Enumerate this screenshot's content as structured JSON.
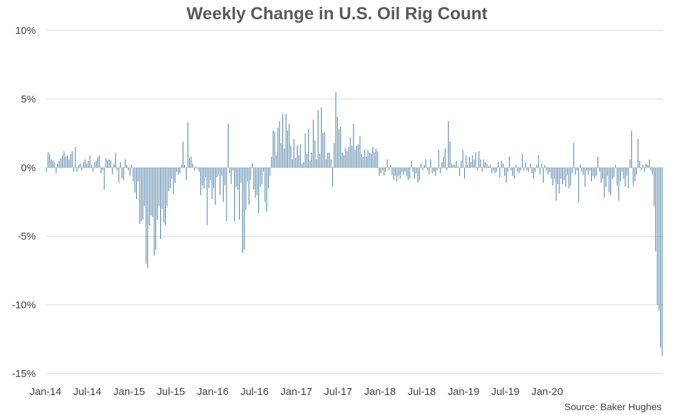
{
  "colors": {
    "bar": "#4A7EA6",
    "grid": "#D9D9D9",
    "text": "#404040",
    "title": "#595959"
  },
  "chart_data": {
    "type": "bar",
    "title": "Weekly Change in U.S. Oil Rig Count",
    "source": "Source: Baker Hughes",
    "xlabel": "",
    "ylabel": "",
    "ylim": [
      -15,
      10
    ],
    "y_ticks": [
      10,
      5,
      0,
      -5,
      -10,
      -15
    ],
    "y_tick_labels": [
      "10%",
      "5%",
      "0%",
      "-5%",
      "-10%",
      "-15%"
    ],
    "x_tick_labels": [
      "Jan-14",
      "Jul-14",
      "Jan-15",
      "Jul-15",
      "Jan-16",
      "Jul-16",
      "Jan-17",
      "Jul-17",
      "Jan-18",
      "Jul-18",
      "Jan-19",
      "Jul-19",
      "Jan-20"
    ],
    "grid": true,
    "legend": "none",
    "series": [
      {
        "values": [
          -0.3,
          1.1,
          1.0,
          0.6,
          0.5,
          0.4,
          -0.4,
          0.3,
          0.5,
          0.7,
          0.9,
          1.2,
          0.8,
          0.9,
          0.6,
          1.0,
          1.2,
          -0.3,
          1.5,
          -0.3,
          0.2,
          0.3,
          -0.2,
          0.4,
          0.6,
          0.3,
          0.5,
          0.9,
          0.2,
          -0.3,
          0.4,
          0.5,
          0.8,
          0.9,
          -0.4,
          -0.2,
          -1.6,
          0.7,
          0.5,
          0.6,
          0.5,
          -0.5,
          0.3,
          1.1,
          -0.2,
          -1.1,
          0.4,
          -0.8,
          -0.9,
          0.6,
          0.2,
          -0.2,
          -0.6,
          0.2,
          -1.0,
          -1.8,
          -2.3,
          -1.0,
          -4.1,
          -3.9,
          -3.8,
          -2.8,
          -7.0,
          -7.3,
          -4.2,
          -3.5,
          -3.6,
          -6.4,
          -6.0,
          -3.8,
          -2.8,
          -5.2,
          -3.0,
          -4.0,
          -4.2,
          -2.8,
          -1.7,
          -1.5,
          -0.8,
          -1.9,
          -1.1,
          -0.3,
          -0.5,
          -0.4,
          0.2,
          1.9,
          0.2,
          -0.9,
          3.3,
          0.7,
          0.8,
          0.3,
          -0.2,
          0.1,
          -0.1,
          -0.3,
          -2.0,
          -1.3,
          -1.5,
          -0.7,
          -4.2,
          -1.5,
          -0.9,
          -2.3,
          -1.5,
          -2.7,
          -0.7,
          -0.5,
          -2.0,
          -0.6,
          -2.5,
          -1.3,
          -3.9,
          3.2,
          -0.4,
          -1.2,
          -0.2,
          -3.9,
          -1.4,
          -1.6,
          -3.8,
          -1.1,
          -6.2,
          -6.0,
          -3.1,
          -1.0,
          -2.7,
          -0.9,
          0.3,
          -1.6,
          -2.2,
          -2.0,
          -3.3,
          -1.4,
          -1.2,
          -0.3,
          -2.5,
          -3.2,
          -1.5,
          -0.6,
          0.8,
          2.7,
          2.6,
          0.9,
          2.9,
          3.4,
          1.8,
          3.9,
          1.4,
          3.9,
          2.7,
          3.2,
          1.6,
          0.6,
          2.1,
          0.7,
          1.6,
          0.9,
          1.7,
          0.3,
          0.4,
          2.5,
          1.0,
          2.8,
          0.5,
          1.1,
          3.5,
          2.0,
          0.6,
          4.2,
          1.0,
          4.4,
          2.5,
          2.6,
          0.6,
          1.1,
          1.1,
          0.6,
          -1.4,
          1.8,
          5.5,
          3.7,
          2.8,
          3.0,
          1.1,
          0.9,
          1.4,
          1.2,
          1.5,
          2.2,
          1.6,
          3.2,
          1.3,
          1.6,
          1.7,
          2.3,
          1.0,
          0.8,
          1.3,
          0.8,
          1.3,
          1.1,
          1.0,
          1.5,
          1.1,
          1.4,
          1.2,
          -0.6,
          -0.4,
          -0.2,
          -0.6,
          -0.3,
          0.6,
          -0.2,
          0.2,
          -0.5,
          -0.9,
          -0.6,
          -1.0,
          -0.6,
          -0.8,
          -0.3,
          -0.5,
          -0.3,
          -0.6,
          -0.9,
          -0.8,
          0.5,
          -0.3,
          -0.8,
          -0.4,
          -1.1,
          -0.9,
          0.3,
          -0.2,
          0.2,
          0.6,
          -0.2,
          -0.5,
          0.6,
          -0.4,
          -0.3,
          -0.6,
          -0.2,
          1.3,
          -0.4,
          0.4,
          0.8,
          1.4,
          -0.2,
          3.4,
          1.9,
          0.3,
          0.2,
          0.2,
          0.5,
          0.1,
          -0.6,
          0.5,
          1.3,
          -0.8,
          0.9,
          0.2,
          0.8,
          0.4,
          0.9,
          0.6,
          1.1,
          -0.2,
          1.2,
          0.6,
          -0.3,
          0.6,
          0.4,
          0.3,
          0.1,
          0.2,
          -0.4,
          -0.2,
          -0.4,
          -0.3,
          0.4,
          -0.7,
          0.5,
          0.3,
          -0.6,
          -1.1,
          -0.3,
          0.8,
          -0.2,
          -0.6,
          -0.8,
          0.2,
          -0.3,
          -0.4,
          -0.2,
          1.0,
          -0.2,
          0.4,
          -0.2,
          -0.3,
          0.3,
          -0.4,
          -0.8,
          -0.3,
          0.2,
          0.9,
          -0.5,
          0.3,
          -1.1,
          0.2,
          -0.2,
          -0.5,
          -0.3,
          -0.8,
          -1.3,
          -0.8,
          -2.4,
          -1.2,
          -1.9,
          -0.8,
          -1.2,
          -0.9,
          -1.4,
          -0.5,
          -1.5,
          -1.3,
          -0.4,
          1.8,
          -0.5,
          -0.2,
          -2.5,
          0.2,
          -0.3,
          -0.5,
          -1.4,
          -0.2,
          -0.5,
          -0.2,
          -1.0,
          -0.6,
          -0.8,
          -0.6,
          0.8,
          -0.3,
          -1.1,
          -0.8,
          -2.2,
          -1.4,
          -0.6,
          -1.8,
          -2.0,
          -0.8,
          -0.7,
          0.2,
          -1.3,
          -2.4,
          -1.0,
          -0.3,
          -0.8,
          -1.4,
          -0.6,
          -1.5,
          0.6,
          2.7,
          -1.3,
          -1.0,
          -0.5,
          2.1,
          0.5,
          -0.2,
          0.2,
          -0.3,
          0.3,
          0.2,
          0.6,
          -0.2,
          -0.5,
          -2.8,
          -6.1,
          -10.0,
          -10.4,
          -13.1,
          -13.7
        ]
      }
    ]
  }
}
